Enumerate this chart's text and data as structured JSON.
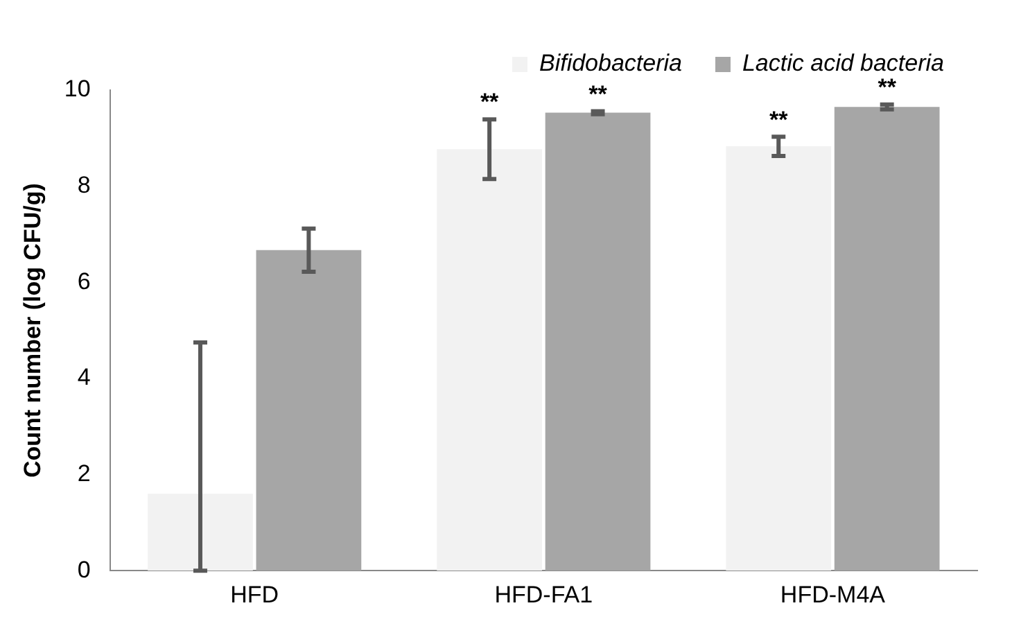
{
  "chart_data": {
    "type": "bar",
    "ylabel": "Count number (log CFU/g)",
    "categories": [
      "HFD",
      "HFD-FA1",
      "HFD-M4A"
    ],
    "series": [
      {
        "name": "Bifidobacteria",
        "color": "#f2f2f2",
        "values": [
          1.6,
          8.77,
          8.83
        ],
        "errors": [
          [
            0,
            4.75
          ],
          0.62,
          0.2
        ]
      },
      {
        "name": "Lactic acid bacteria",
        "color": "#a6a6a6",
        "values": [
          6.67,
          9.53,
          9.65
        ],
        "errors": [
          0.45,
          0.03,
          0.05
        ]
      }
    ],
    "ylim": [
      0,
      10
    ],
    "yticks": [
      0,
      2,
      4,
      6,
      8,
      10
    ],
    "grid": false,
    "legend": "top right",
    "annotations": [
      {
        "text": "**",
        "x": "HFD-FA1",
        "y": 9.4
      },
      {
        "text": "**",
        "x": "HFD-FA1",
        "y": 9.56
      },
      {
        "text": "**",
        "x": "HFD-M4A",
        "y": 9.03
      },
      {
        "text": "**",
        "x": "HFD-M4A",
        "y": 9.7
      }
    ]
  }
}
